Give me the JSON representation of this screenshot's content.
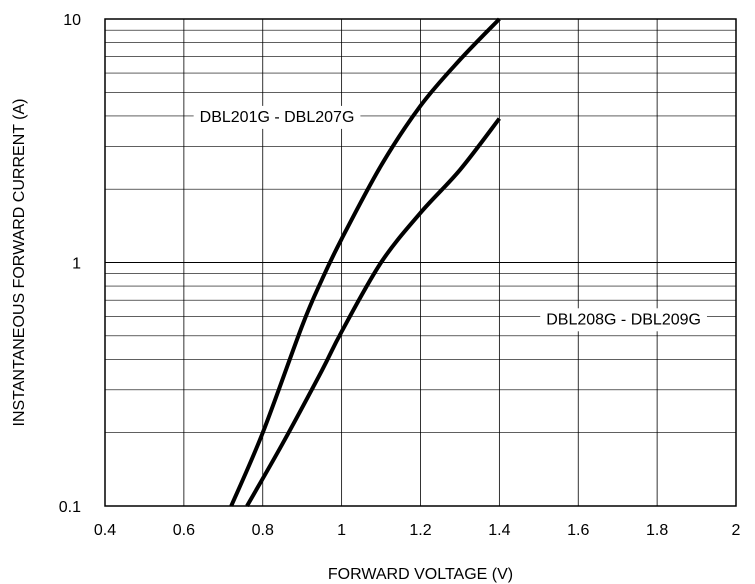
{
  "chart_data": {
    "type": "line",
    "xlabel": "FORWARD VOLTAGE (V)",
    "ylabel": "INSTANTANEOUS FORWARD CURRENT (A)",
    "xlim": [
      0.4,
      2.0
    ],
    "ylim": [
      0.1,
      10
    ],
    "yscale": "log",
    "grid": true,
    "x_ticks": [
      0.4,
      0.6,
      0.8,
      1.0,
      1.2,
      1.4,
      1.6,
      1.8,
      2.0
    ],
    "x_tick_labels": [
      "0.4",
      "0.6",
      "0.8",
      "1",
      "1.2",
      "1.4",
      "1.6",
      "1.8",
      "2"
    ],
    "y_ticks": [
      0.1,
      1,
      10
    ],
    "y_tick_labels": [
      "0.1",
      "1",
      "10"
    ],
    "series": [
      {
        "name": "DBL201G - DBL207G",
        "x": [
          0.72,
          0.8,
          0.9,
          0.95,
          1.0,
          1.1,
          1.2,
          1.3,
          1.4
        ],
        "y": [
          0.1,
          0.2,
          0.55,
          0.85,
          1.25,
          2.5,
          4.4,
          6.8,
          10.0
        ]
      },
      {
        "name": "DBL208G - DBL209G",
        "x": [
          0.76,
          0.85,
          0.95,
          1.0,
          1.1,
          1.2,
          1.3,
          1.4
        ],
        "y": [
          0.1,
          0.18,
          0.36,
          0.52,
          1.0,
          1.6,
          2.4,
          3.9
        ]
      }
    ],
    "colors": {
      "axis": "#000000",
      "grid": "#000000",
      "series": "#000000"
    }
  }
}
